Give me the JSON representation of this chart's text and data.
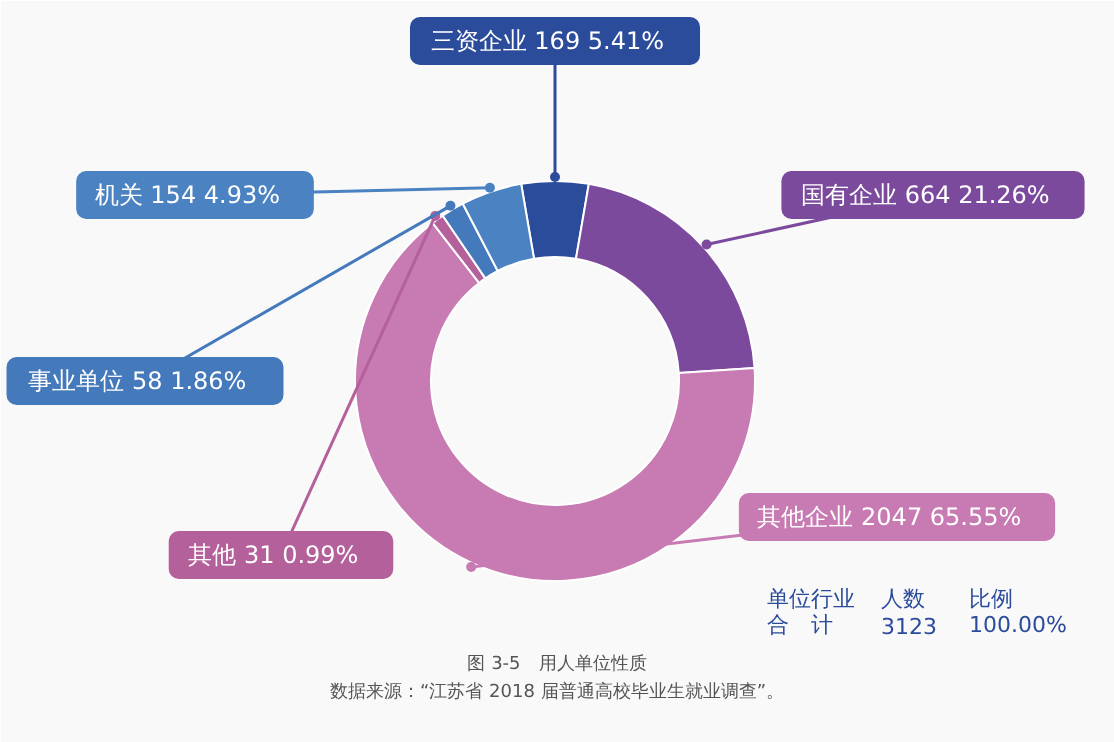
{
  "chart_data": {
    "type": "donut",
    "title": "图 3-5　用人单位性质",
    "categories": [
      "三资企业",
      "国有企业",
      "其他企业",
      "其他",
      "事业单位",
      "机关"
    ],
    "values": [
      5.41,
      21.26,
      65.55,
      0.99,
      1.86,
      4.93
    ],
    "colors": [
      "#2b4b9b",
      "#7b4a9c",
      "#c87ab2",
      "#b4609a",
      "#4479bb",
      "#4a82c2"
    ],
    "value_labels": [
      "169  5.41%",
      "664  21.26%",
      "2047  65.55%",
      "31  0.99%",
      "58  1.86%",
      "154  4.93%"
    ],
    "annotations": [
      "单位行业",
      "人数",
      "比例",
      "合　计",
      "3123",
      "100.00%",
      "数据来源：“江苏省 2018 届普通高校毕业生就业调查”。"
    ]
  }
}
